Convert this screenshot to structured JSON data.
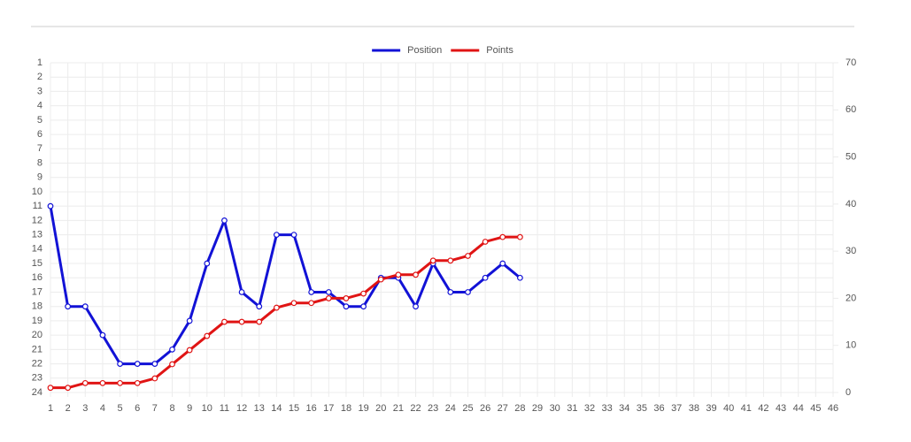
{
  "chart_data": {
    "type": "line",
    "categories": [
      1,
      2,
      3,
      4,
      5,
      6,
      7,
      8,
      9,
      10,
      11,
      12,
      13,
      14,
      15,
      16,
      17,
      18,
      19,
      20,
      21,
      22,
      23,
      24,
      25,
      26,
      27,
      28,
      29,
      30,
      31,
      32,
      33,
      34,
      35,
      36,
      37,
      38,
      39,
      40,
      41,
      42,
      43,
      44,
      45,
      46
    ],
    "series": [
      {
        "name": "Position",
        "color": "#1212d6",
        "axis": "y",
        "values": [
          11,
          18,
          18,
          20,
          22,
          22,
          22,
          21,
          19,
          15,
          12,
          17,
          18,
          13,
          13,
          17,
          17,
          18,
          18,
          16,
          16,
          18,
          15,
          17,
          17,
          16,
          15,
          16,
          null,
          null,
          null,
          null,
          null,
          null,
          null,
          null,
          null,
          null,
          null,
          null,
          null,
          null,
          null,
          null,
          null,
          null
        ]
      },
      {
        "name": "Points",
        "color": "#e01414",
        "axis": "y2",
        "values": [
          1,
          1,
          2,
          2,
          2,
          2,
          3,
          6,
          9,
          12,
          15,
          15,
          15,
          18,
          19,
          19,
          20,
          20,
          21,
          24,
          25,
          25,
          28,
          28,
          29,
          32,
          33,
          33,
          null,
          null,
          null,
          null,
          null,
          null,
          null,
          null,
          null,
          null,
          null,
          null,
          null,
          null,
          null,
          null,
          null,
          null
        ]
      }
    ],
    "ylim": [
      24,
      1
    ],
    "yticks": [
      1,
      2,
      3,
      4,
      5,
      6,
      7,
      8,
      9,
      10,
      11,
      12,
      13,
      14,
      15,
      16,
      17,
      18,
      19,
      20,
      21,
      22,
      23,
      24
    ],
    "y2lim": [
      0,
      70
    ],
    "y2ticks": [
      0,
      10,
      20,
      30,
      40,
      50,
      60,
      70
    ],
    "grid": true,
    "legend": "top"
  }
}
